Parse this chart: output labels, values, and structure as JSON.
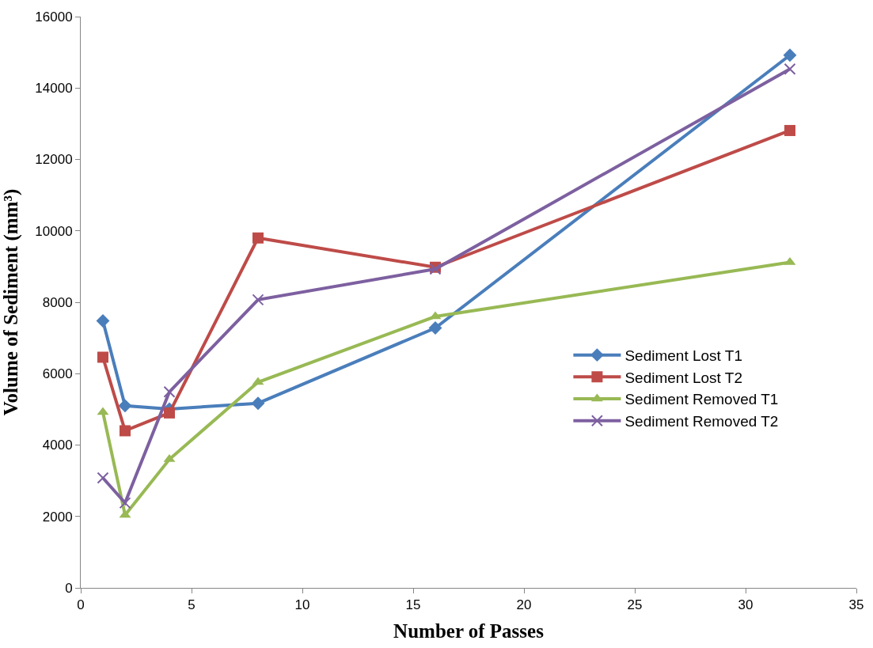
{
  "chart_data": {
    "type": "line",
    "xlabel": "Number of Passes",
    "ylabel": "Volume of Sediment (mm³)",
    "x": [
      1,
      2,
      4,
      8,
      16,
      32
    ],
    "series": [
      {
        "name": "Sediment Lost T1",
        "color": "#4a7ebb",
        "marker": "diamond",
        "values": [
          7480,
          5100,
          5010,
          5170,
          7280,
          14920
        ]
      },
      {
        "name": "Sediment Lost T2",
        "color": "#be4b48",
        "marker": "square",
        "values": [
          6460,
          4400,
          4900,
          9800,
          8980,
          12810
        ]
      },
      {
        "name": "Sediment Removed T1",
        "color": "#98b954",
        "marker": "triangle",
        "values": [
          4920,
          2040,
          3600,
          5760,
          7600,
          9120
        ]
      },
      {
        "name": "Sediment Removed T2",
        "color": "#7d60a0",
        "marker": "cross",
        "values": [
          3080,
          2380,
          5490,
          8070,
          8930,
          14530
        ]
      }
    ],
    "xlim": [
      0,
      35
    ],
    "xticks": [
      0,
      5,
      10,
      15,
      20,
      25,
      30,
      35
    ],
    "ylim": [
      0,
      16000
    ],
    "yticks": [
      0,
      2000,
      4000,
      6000,
      8000,
      10000,
      12000,
      14000,
      16000
    ],
    "legend": "right",
    "line_style": "solid"
  }
}
